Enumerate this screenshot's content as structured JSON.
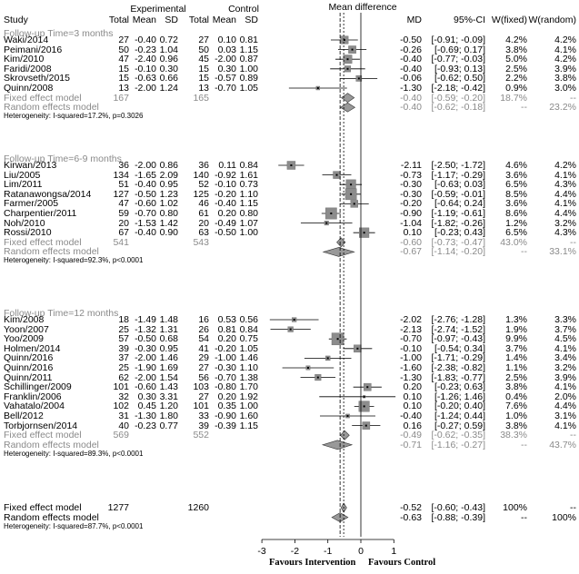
{
  "header": {
    "study": "Study",
    "experimental": "Experimental",
    "control": "Control",
    "mean_difference": "Mean difference",
    "total": "Total",
    "mean": "Mean",
    "sd": "SD",
    "md": "MD",
    "ci": "95%-CI",
    "w_fixed": "W(fixed)",
    "w_random": "W(random)"
  },
  "groups": [
    {
      "label": "Follow-up Time=3 months",
      "studies": [
        {
          "study": "Waki/2014",
          "e_total": "27",
          "e_mean": "-0.40",
          "e_sd": "0.72",
          "c_total": "27",
          "c_mean": "0.10",
          "c_sd": "0.81",
          "md": -0.5,
          "lo": -0.91,
          "hi": -0.09,
          "md_text": "-0.50",
          "ci_text": "[-0.91; -0.09]",
          "w_fixed": "4.2%",
          "w_random": "4.2%",
          "weight": 4.2
        },
        {
          "study": "Peimani/2016",
          "e_total": "50",
          "e_mean": "-0.23",
          "e_sd": "1.04",
          "c_total": "50",
          "c_mean": "0.03",
          "c_sd": "1.15",
          "md": -0.26,
          "lo": -0.69,
          "hi": 0.17,
          "md_text": "-0.26",
          "ci_text": "[-0.69; 0.17]",
          "w_fixed": "3.8%",
          "w_random": "4.1%",
          "weight": 3.8
        },
        {
          "study": "Kim/2010",
          "e_total": "47",
          "e_mean": "-2.40",
          "e_sd": "0.96",
          "c_total": "45",
          "c_mean": "-2.00",
          "c_sd": "0.87",
          "md": -0.4,
          "lo": -0.77,
          "hi": -0.03,
          "md_text": "-0.40",
          "ci_text": "[-0.77; -0.03]",
          "w_fixed": "5.0%",
          "w_random": "4.2%",
          "weight": 5.0
        },
        {
          "study": "Faridi/2008",
          "e_total": "15",
          "e_mean": "-0.10",
          "e_sd": "0.30",
          "c_total": "15",
          "c_mean": "0.30",
          "c_sd": "1.00",
          "md": -0.4,
          "lo": -0.93,
          "hi": 0.13,
          "md_text": "-0.40",
          "ci_text": "[-0.93; 0.13]",
          "w_fixed": "2.5%",
          "w_random": "3.9%",
          "weight": 2.5
        },
        {
          "study": "Skrovseth/2015",
          "e_total": "15",
          "e_mean": "-0.63",
          "e_sd": "0.66",
          "c_total": "15",
          "c_mean": "-0.57",
          "c_sd": "0.89",
          "md": -0.06,
          "lo": -0.62,
          "hi": 0.5,
          "md_text": "-0.06",
          "ci_text": "[-0.62; 0.50]",
          "w_fixed": "2.2%",
          "w_random": "3.8%",
          "weight": 2.2
        },
        {
          "study": "Quinn/2008",
          "e_total": "13",
          "e_mean": "-2.00",
          "e_sd": "1.24",
          "c_total": "13",
          "c_mean": "-0.70",
          "c_sd": "1.05",
          "md": -1.3,
          "lo": -2.18,
          "hi": -0.42,
          "md_text": "-1.30",
          "ci_text": "[-2.18; -0.42]",
          "w_fixed": "0.9%",
          "w_random": "3.0%",
          "weight": 0.9
        }
      ],
      "fixed": {
        "label": "Fixed effect model",
        "e_total": "167",
        "c_total": "165",
        "md": -0.4,
        "lo": -0.59,
        "hi": -0.2,
        "md_text": "-0.40",
        "ci_text": "[-0.59; -0.20]",
        "w_fixed": "18.7%",
        "w_random": "--"
      },
      "random": {
        "label": "Random effects model",
        "md": -0.4,
        "lo": -0.62,
        "hi": -0.18,
        "md_text": "-0.40",
        "ci_text": "[-0.62; -0.18]",
        "w_fixed": "--",
        "w_random": "23.2%"
      },
      "heterogeneity": "Heterogeneity: I-squared=17.2%, p=0.3026"
    },
    {
      "label": "Follow-up Time=6-9 months",
      "studies": [
        {
          "study": "Kirwan/2013",
          "e_total": "36",
          "e_mean": "-2.00",
          "e_sd": "0.86",
          "c_total": "36",
          "c_mean": "0.11",
          "c_sd": "0.84",
          "md": -2.11,
          "lo": -2.5,
          "hi": -1.72,
          "md_text": "-2.11",
          "ci_text": "[-2.50; -1.72]",
          "w_fixed": "4.6%",
          "w_random": "4.2%",
          "weight": 4.6
        },
        {
          "study": "Liu/2005",
          "e_total": "134",
          "e_mean": "-1.65",
          "e_sd": "2.09",
          "c_total": "140",
          "c_mean": "-0.92",
          "c_sd": "1.61",
          "md": -0.73,
          "lo": -1.17,
          "hi": -0.29,
          "md_text": "-0.73",
          "ci_text": "[-1.17; -0.29]",
          "w_fixed": "3.6%",
          "w_random": "4.1%",
          "weight": 3.6
        },
        {
          "study": "Lim/2011",
          "e_total": "51",
          "e_mean": "-0.40",
          "e_sd": "0.95",
          "c_total": "52",
          "c_mean": "-0.10",
          "c_sd": "0.73",
          "md": -0.3,
          "lo": -0.63,
          "hi": 0.03,
          "md_text": "-0.30",
          "ci_text": "[-0.63; 0.03]",
          "w_fixed": "6.5%",
          "w_random": "4.3%",
          "weight": 6.5
        },
        {
          "study": "Ratanawongsa/2014",
          "e_total": "127",
          "e_mean": "-0.50",
          "e_sd": "1.23",
          "c_total": "125",
          "c_mean": "-0.20",
          "c_sd": "1.10",
          "md": -0.3,
          "lo": -0.59,
          "hi": -0.01,
          "md_text": "-0.30",
          "ci_text": "[-0.59; -0.01]",
          "w_fixed": "8.5%",
          "w_random": "4.4%",
          "weight": 8.5
        },
        {
          "study": "Farmer/2005",
          "e_total": "47",
          "e_mean": "-0.60",
          "e_sd": "1.02",
          "c_total": "46",
          "c_mean": "-0.40",
          "c_sd": "1.15",
          "md": -0.2,
          "lo": -0.64,
          "hi": 0.24,
          "md_text": "-0.20",
          "ci_text": "[-0.64; 0.24]",
          "w_fixed": "3.6%",
          "w_random": "4.1%",
          "weight": 3.6
        },
        {
          "study": "Charpentier/2011",
          "e_total": "59",
          "e_mean": "-0.70",
          "e_sd": "0.80",
          "c_total": "61",
          "c_mean": "0.20",
          "c_sd": "0.80",
          "md": -0.9,
          "lo": -1.19,
          "hi": -0.61,
          "md_text": "-0.90",
          "ci_text": "[-1.19; -0.61]",
          "w_fixed": "8.6%",
          "w_random": "4.4%",
          "weight": 8.6
        },
        {
          "study": "Noh/2010",
          "e_total": "20",
          "e_mean": "-1.53",
          "e_sd": "1.42",
          "c_total": "20",
          "c_mean": "-0.49",
          "c_sd": "1.07",
          "md": -1.04,
          "lo": -1.82,
          "hi": -0.26,
          "md_text": "-1.04",
          "ci_text": "[-1.82; -0.26]",
          "w_fixed": "1.2%",
          "w_random": "3.2%",
          "weight": 1.2
        },
        {
          "study": "Rossi/2010",
          "e_total": "67",
          "e_mean": "-0.40",
          "e_sd": "0.90",
          "c_total": "63",
          "c_mean": "-0.50",
          "c_sd": "1.00",
          "md": 0.1,
          "lo": -0.23,
          "hi": 0.43,
          "md_text": "0.10",
          "ci_text": "[-0.23; 0.43]",
          "w_fixed": "6.5%",
          "w_random": "4.3%",
          "weight": 6.5
        }
      ],
      "fixed": {
        "label": "Fixed effect model",
        "e_total": "541",
        "c_total": "543",
        "md": -0.6,
        "lo": -0.73,
        "hi": -0.47,
        "md_text": "-0.60",
        "ci_text": "[-0.73; -0.47]",
        "w_fixed": "43.0%",
        "w_random": "--"
      },
      "random": {
        "label": "Random effects model",
        "md": -0.67,
        "lo": -1.14,
        "hi": -0.2,
        "md_text": "-0.67",
        "ci_text": "[-1.14; -0.20]",
        "w_fixed": "--",
        "w_random": "33.1%"
      },
      "heterogeneity": "Heterogeneity: I-squared=92.3%, p<0.0001"
    },
    {
      "label": "Follow-up Time=12 months",
      "studies": [
        {
          "study": "Kim/2008",
          "e_total": "18",
          "e_mean": "-1.49",
          "e_sd": "1.48",
          "c_total": "16",
          "c_mean": "0.53",
          "c_sd": "0.56",
          "md": -2.02,
          "lo": -2.76,
          "hi": -1.28,
          "md_text": "-2.02",
          "ci_text": "[-2.76; -1.28]",
          "w_fixed": "1.3%",
          "w_random": "3.3%",
          "weight": 1.3
        },
        {
          "study": "Yoon/2007",
          "e_total": "25",
          "e_mean": "-1.32",
          "e_sd": "1.31",
          "c_total": "26",
          "c_mean": "0.81",
          "c_sd": "0.84",
          "md": -2.13,
          "lo": -2.74,
          "hi": -1.52,
          "md_text": "-2.13",
          "ci_text": "[-2.74; -1.52]",
          "w_fixed": "1.9%",
          "w_random": "3.7%",
          "weight": 1.9
        },
        {
          "study": "Yoo/2009",
          "e_total": "57",
          "e_mean": "-0.50",
          "e_sd": "0.68",
          "c_total": "54",
          "c_mean": "0.20",
          "c_sd": "0.75",
          "md": -0.7,
          "lo": -0.97,
          "hi": -0.43,
          "md_text": "-0.70",
          "ci_text": "[-0.97; -0.43]",
          "w_fixed": "9.9%",
          "w_random": "4.5%",
          "weight": 9.9
        },
        {
          "study": "Holmen/2014",
          "e_total": "39",
          "e_mean": "-0.30",
          "e_sd": "0.95",
          "c_total": "41",
          "c_mean": "-0.20",
          "c_sd": "1.05",
          "md": -0.1,
          "lo": -0.54,
          "hi": 0.34,
          "md_text": "-0.10",
          "ci_text": "[-0.54; 0.34]",
          "w_fixed": "3.7%",
          "w_random": "4.1%",
          "weight": 3.7
        },
        {
          "study": "Quinn/2016",
          "e_total": "37",
          "e_mean": "-2.00",
          "e_sd": "1.46",
          "c_total": "29",
          "c_mean": "-1.00",
          "c_sd": "1.46",
          "md": -1.0,
          "lo": -1.71,
          "hi": -0.29,
          "md_text": "-1.00",
          "ci_text": "[-1.71; -0.29]",
          "w_fixed": "1.4%",
          "w_random": "3.4%",
          "weight": 1.4
        },
        {
          "study": "Quinn/2016",
          "e_total": "25",
          "e_mean": "-1.90",
          "e_sd": "1.69",
          "c_total": "27",
          "c_mean": "-0.30",
          "c_sd": "1.10",
          "md": -1.6,
          "lo": -2.38,
          "hi": -0.82,
          "md_text": "-1.60",
          "ci_text": "[-2.38; -0.82]",
          "w_fixed": "1.1%",
          "w_random": "3.2%",
          "weight": 1.1
        },
        {
          "study": "Quinn/2011",
          "e_total": "62",
          "e_mean": "-2.00",
          "e_sd": "1.54",
          "c_total": "56",
          "c_mean": "-0.70",
          "c_sd": "1.38",
          "md": -1.3,
          "lo": -1.83,
          "hi": -0.77,
          "md_text": "-1.30",
          "ci_text": "[-1.83; -0.77]",
          "w_fixed": "2.5%",
          "w_random": "3.9%",
          "weight": 2.5
        },
        {
          "study": "Schillinger/2009",
          "e_total": "101",
          "e_mean": "-0.60",
          "e_sd": "1.43",
          "c_total": "103",
          "c_mean": "-0.80",
          "c_sd": "1.70",
          "md": 0.2,
          "lo": -0.23,
          "hi": 0.63,
          "md_text": "0.20",
          "ci_text": "[-0.23; 0.63]",
          "w_fixed": "3.8%",
          "w_random": "4.1%",
          "weight": 3.8
        },
        {
          "study": "Franklin/2006",
          "e_total": "32",
          "e_mean": "0.30",
          "e_sd": "3.31",
          "c_total": "27",
          "c_mean": "0.20",
          "c_sd": "1.92",
          "md": 0.1,
          "lo": -1.26,
          "hi": 1.46,
          "md_text": "0.10",
          "ci_text": "[-1.26; 1.46]",
          "w_fixed": "0.4%",
          "w_random": "2.0%",
          "weight": 0.4
        },
        {
          "study": "Vahatalo/2004",
          "e_total": "102",
          "e_mean": "0.45",
          "e_sd": "1.20",
          "c_total": "101",
          "c_mean": "0.35",
          "c_sd": "1.00",
          "md": 0.1,
          "lo": -0.2,
          "hi": 0.4,
          "md_text": "0.10",
          "ci_text": "[-0.20; 0.40]",
          "w_fixed": "7.6%",
          "w_random": "4.4%",
          "weight": 7.6
        },
        {
          "study": "Bell/2012",
          "e_total": "31",
          "e_mean": "-1.30",
          "e_sd": "1.80",
          "c_total": "33",
          "c_mean": "-0.90",
          "c_sd": "1.60",
          "md": -0.4,
          "lo": -1.24,
          "hi": 0.44,
          "md_text": "-0.40",
          "ci_text": "[-1.24; 0.44]",
          "w_fixed": "1.0%",
          "w_random": "3.1%",
          "weight": 1.0
        },
        {
          "study": "Torbjornsen/2014",
          "e_total": "40",
          "e_mean": "-0.23",
          "e_sd": "0.77",
          "c_total": "39",
          "c_mean": "-0.39",
          "c_sd": "1.15",
          "md": 0.16,
          "lo": -0.27,
          "hi": 0.59,
          "md_text": "0.16",
          "ci_text": "[-0.27; 0.59]",
          "w_fixed": "3.8%",
          "w_random": "4.1%",
          "weight": 3.8
        }
      ],
      "fixed": {
        "label": "Fixed effect model",
        "e_total": "569",
        "c_total": "552",
        "md": -0.49,
        "lo": -0.62,
        "hi": -0.35,
        "md_text": "-0.49",
        "ci_text": "[-0.62; -0.35]",
        "w_fixed": "38.3%",
        "w_random": "--"
      },
      "random": {
        "label": "Random effects model",
        "md": -0.71,
        "lo": -1.16,
        "hi": -0.27,
        "md_text": "-0.71",
        "ci_text": "[-1.16; -0.27]",
        "w_fixed": "--",
        "w_random": "43.7%"
      },
      "heterogeneity": "Heterogeneity: I-squared=89.3%, p<0.0001"
    }
  ],
  "overall": {
    "fixed": {
      "label": "Fixed effect model",
      "e_total": "1277",
      "c_total": "1260",
      "md": -0.52,
      "lo": -0.6,
      "hi": -0.43,
      "md_text": "-0.52",
      "ci_text": "[-0.60; -0.43]",
      "w_fixed": "100%",
      "w_random": "--"
    },
    "random": {
      "label": "Random effects model",
      "md": -0.63,
      "lo": -0.88,
      "hi": -0.39,
      "md_text": "-0.63",
      "ci_text": "[-0.88; -0.39]",
      "w_fixed": "--",
      "w_random": "100%"
    },
    "heterogeneity": "Heterogeneity: I-squared=87.7%, p<0.0001"
  },
  "axis": {
    "ticks": [
      "-3",
      "-2",
      "-1",
      "0",
      "1"
    ],
    "left_label": "Favours Intervention",
    "right_label": "Favours Control"
  },
  "chart_data": {
    "type": "forest",
    "x_range": [
      -3,
      1
    ],
    "reference_line": 0,
    "overall_fixed": -0.52,
    "overall_random": -0.63,
    "axis_ticks": [
      -3,
      -2,
      -1,
      0,
      1
    ],
    "xlabel_left": "Favours Intervention",
    "xlabel_right": "Favours Control",
    "colors": {
      "text": "#000000",
      "model_text": "#8a8a8a",
      "square": "#8c8c8c",
      "diamond": "#999999"
    }
  }
}
